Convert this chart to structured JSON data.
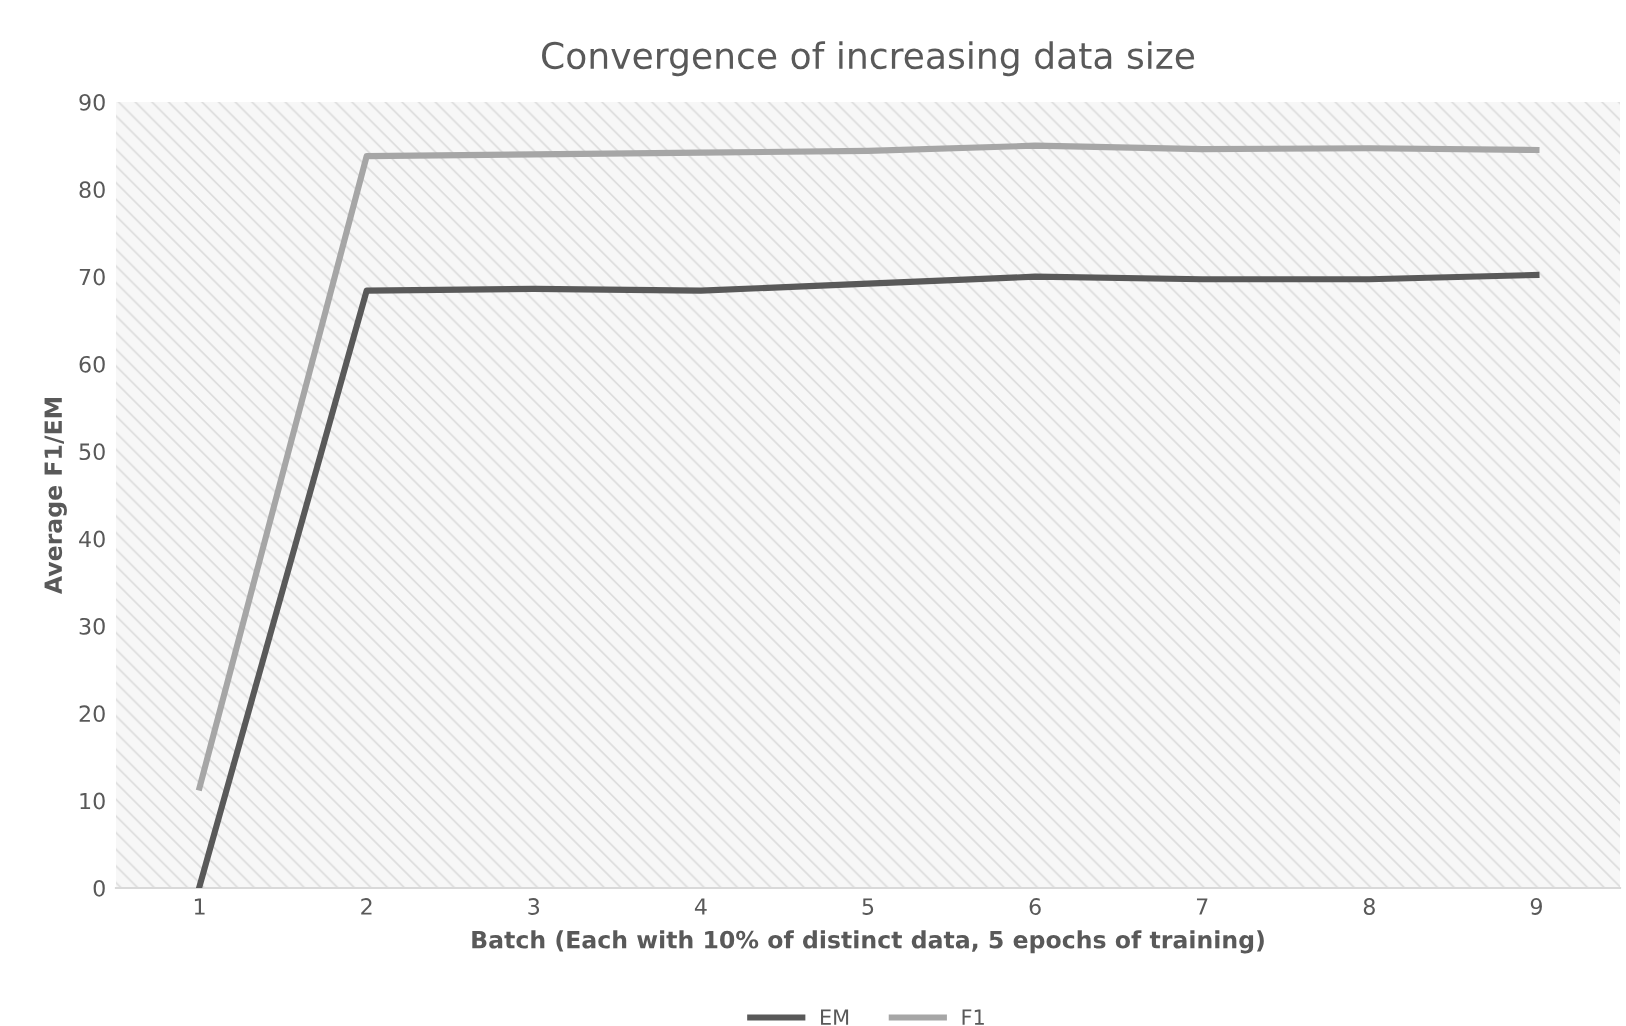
{
  "chart_data": {
    "type": "line",
    "title": "Convergence of increasing data size",
    "xlabel": "Batch (Each with 10% of distinct data, 5 epochs of training)",
    "ylabel": "Average F1/EM",
    "categories": [
      "1",
      "2",
      "3",
      "4",
      "5",
      "6",
      "7",
      "8",
      "9"
    ],
    "series": [
      {
        "name": "EM",
        "color": "#595959",
        "values": [
          0.2,
          68.4,
          68.6,
          68.4,
          69.2,
          70.0,
          69.7,
          69.7,
          70.2
        ]
      },
      {
        "name": "F1",
        "color": "#a6a6a6",
        "values": [
          11.5,
          83.8,
          84.0,
          84.2,
          84.4,
          85.0,
          84.6,
          84.7,
          84.5
        ]
      }
    ],
    "ylim": [
      0,
      90
    ],
    "yticks": [
      0,
      10,
      20,
      30,
      40,
      50,
      60,
      70,
      80,
      90
    ],
    "grid": false,
    "legend": "bottom",
    "marker": "none",
    "line_style": "solid"
  }
}
